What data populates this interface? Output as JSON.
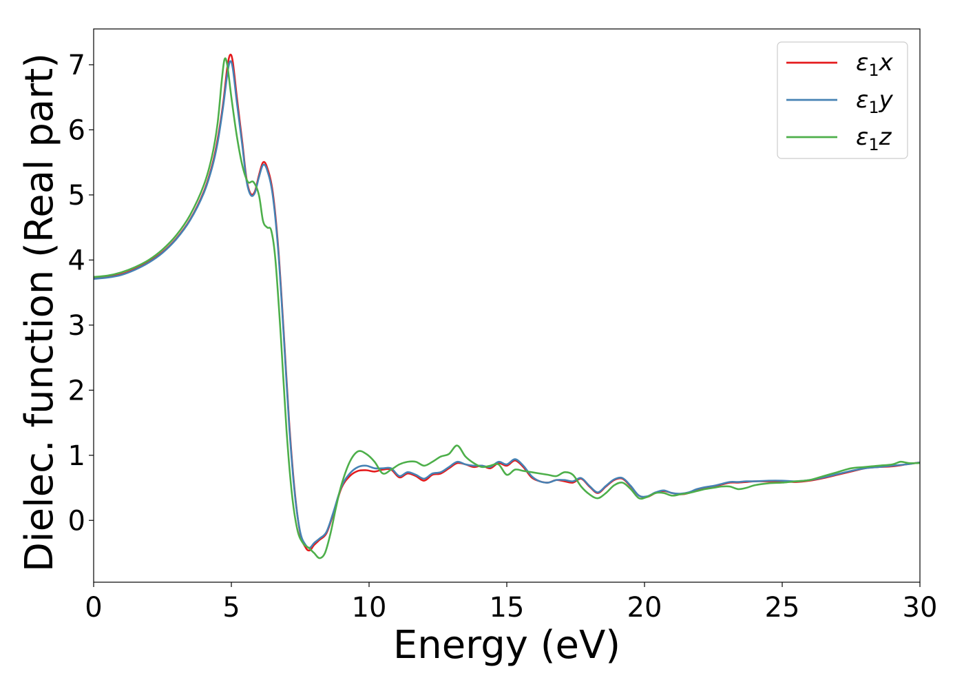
{
  "chart_data": {
    "type": "line",
    "title": "",
    "xlabel": "Energy (eV)",
    "ylabel": "Dielec. function (Real part)",
    "xlim": [
      0,
      30
    ],
    "ylim": [
      -0.95,
      7.55
    ],
    "xticks": [
      0,
      5,
      10,
      15,
      20,
      25,
      30
    ],
    "yticks": [
      0,
      1,
      2,
      3,
      4,
      5,
      6,
      7
    ],
    "grid": false,
    "legend_position": "top-right",
    "series": [
      {
        "name": "ε1x",
        "legend_main": "ε",
        "legend_sub": "1",
        "legend_tail": "x",
        "color": "#e41a1c",
        "points": [
          [
            0,
            3.72
          ],
          [
            0.5,
            3.74
          ],
          [
            1.0,
            3.78
          ],
          [
            1.5,
            3.86
          ],
          [
            2.0,
            3.97
          ],
          [
            2.5,
            4.12
          ],
          [
            3.0,
            4.33
          ],
          [
            3.5,
            4.62
          ],
          [
            4.0,
            5.05
          ],
          [
            4.3,
            5.45
          ],
          [
            4.5,
            5.85
          ],
          [
            4.7,
            6.4
          ],
          [
            4.85,
            6.95
          ],
          [
            4.95,
            7.15
          ],
          [
            5.05,
            7.05
          ],
          [
            5.2,
            6.5
          ],
          [
            5.4,
            5.8
          ],
          [
            5.55,
            5.25
          ],
          [
            5.7,
            5.02
          ],
          [
            5.85,
            5.05
          ],
          [
            6.0,
            5.3
          ],
          [
            6.15,
            5.5
          ],
          [
            6.3,
            5.42
          ],
          [
            6.5,
            5.05
          ],
          [
            6.7,
            4.2
          ],
          [
            6.9,
            2.9
          ],
          [
            7.1,
            1.5
          ],
          [
            7.3,
            0.45
          ],
          [
            7.5,
            -0.2
          ],
          [
            7.7,
            -0.42
          ],
          [
            7.85,
            -0.46
          ],
          [
            8.0,
            -0.38
          ],
          [
            8.2,
            -0.3
          ],
          [
            8.45,
            -0.2
          ],
          [
            8.7,
            0.1
          ],
          [
            9.0,
            0.5
          ],
          [
            9.3,
            0.68
          ],
          [
            9.6,
            0.76
          ],
          [
            9.9,
            0.77
          ],
          [
            10.2,
            0.75
          ],
          [
            10.5,
            0.78
          ],
          [
            10.8,
            0.78
          ],
          [
            11.1,
            0.66
          ],
          [
            11.4,
            0.72
          ],
          [
            11.7,
            0.68
          ],
          [
            12.0,
            0.61
          ],
          [
            12.3,
            0.7
          ],
          [
            12.6,
            0.72
          ],
          [
            12.9,
            0.8
          ],
          [
            13.2,
            0.88
          ],
          [
            13.5,
            0.86
          ],
          [
            13.8,
            0.82
          ],
          [
            14.1,
            0.84
          ],
          [
            14.4,
            0.8
          ],
          [
            14.7,
            0.88
          ],
          [
            15.0,
            0.84
          ],
          [
            15.3,
            0.92
          ],
          [
            15.6,
            0.82
          ],
          [
            15.9,
            0.66
          ],
          [
            16.2,
            0.6
          ],
          [
            16.5,
            0.58
          ],
          [
            16.8,
            0.62
          ],
          [
            17.1,
            0.6
          ],
          [
            17.4,
            0.58
          ],
          [
            17.7,
            0.64
          ],
          [
            18.0,
            0.52
          ],
          [
            18.3,
            0.42
          ],
          [
            18.6,
            0.52
          ],
          [
            18.9,
            0.62
          ],
          [
            19.2,
            0.64
          ],
          [
            19.5,
            0.52
          ],
          [
            19.8,
            0.38
          ],
          [
            20.1,
            0.36
          ],
          [
            20.4,
            0.42
          ],
          [
            20.7,
            0.45
          ],
          [
            21.0,
            0.42
          ],
          [
            21.3,
            0.4
          ],
          [
            21.6,
            0.42
          ],
          [
            21.9,
            0.47
          ],
          [
            22.2,
            0.5
          ],
          [
            22.5,
            0.52
          ],
          [
            22.8,
            0.55
          ],
          [
            23.1,
            0.58
          ],
          [
            23.4,
            0.58
          ],
          [
            23.7,
            0.59
          ],
          [
            24.0,
            0.6
          ],
          [
            24.5,
            0.6
          ],
          [
            25.0,
            0.6
          ],
          [
            25.5,
            0.59
          ],
          [
            26.0,
            0.61
          ],
          [
            26.5,
            0.65
          ],
          [
            27.0,
            0.7
          ],
          [
            27.5,
            0.75
          ],
          [
            28.0,
            0.8
          ],
          [
            28.5,
            0.82
          ],
          [
            29.0,
            0.83
          ],
          [
            29.5,
            0.86
          ],
          [
            30.0,
            0.89
          ]
        ]
      },
      {
        "name": "ε1y",
        "legend_main": "ε",
        "legend_sub": "1",
        "legend_tail": "y",
        "color": "#4682b4",
        "points": [
          [
            0,
            3.71
          ],
          [
            0.5,
            3.73
          ],
          [
            1.0,
            3.77
          ],
          [
            1.5,
            3.85
          ],
          [
            2.0,
            3.96
          ],
          [
            2.5,
            4.11
          ],
          [
            3.0,
            4.32
          ],
          [
            3.5,
            4.61
          ],
          [
            4.0,
            5.03
          ],
          [
            4.3,
            5.42
          ],
          [
            4.5,
            5.8
          ],
          [
            4.7,
            6.35
          ],
          [
            4.85,
            6.85
          ],
          [
            4.95,
            7.05
          ],
          [
            5.05,
            6.95
          ],
          [
            5.2,
            6.42
          ],
          [
            5.4,
            5.75
          ],
          [
            5.55,
            5.22
          ],
          [
            5.7,
            5.0
          ],
          [
            5.85,
            5.03
          ],
          [
            6.0,
            5.27
          ],
          [
            6.15,
            5.46
          ],
          [
            6.3,
            5.38
          ],
          [
            6.5,
            5.0
          ],
          [
            6.7,
            4.15
          ],
          [
            6.9,
            2.85
          ],
          [
            7.1,
            1.45
          ],
          [
            7.3,
            0.42
          ],
          [
            7.5,
            -0.18
          ],
          [
            7.7,
            -0.38
          ],
          [
            7.85,
            -0.42
          ],
          [
            8.0,
            -0.35
          ],
          [
            8.2,
            -0.28
          ],
          [
            8.45,
            -0.18
          ],
          [
            8.7,
            0.12
          ],
          [
            9.0,
            0.52
          ],
          [
            9.3,
            0.72
          ],
          [
            9.6,
            0.82
          ],
          [
            9.9,
            0.84
          ],
          [
            10.2,
            0.8
          ],
          [
            10.5,
            0.8
          ],
          [
            10.8,
            0.8
          ],
          [
            11.1,
            0.68
          ],
          [
            11.4,
            0.74
          ],
          [
            11.7,
            0.7
          ],
          [
            12.0,
            0.64
          ],
          [
            12.3,
            0.72
          ],
          [
            12.6,
            0.74
          ],
          [
            12.9,
            0.82
          ],
          [
            13.2,
            0.9
          ],
          [
            13.5,
            0.86
          ],
          [
            13.8,
            0.84
          ],
          [
            14.1,
            0.84
          ],
          [
            14.4,
            0.82
          ],
          [
            14.7,
            0.9
          ],
          [
            15.0,
            0.86
          ],
          [
            15.3,
            0.94
          ],
          [
            15.6,
            0.84
          ],
          [
            15.9,
            0.68
          ],
          [
            16.2,
            0.6
          ],
          [
            16.5,
            0.58
          ],
          [
            16.8,
            0.62
          ],
          [
            17.1,
            0.62
          ],
          [
            17.4,
            0.6
          ],
          [
            17.7,
            0.65
          ],
          [
            18.0,
            0.53
          ],
          [
            18.3,
            0.43
          ],
          [
            18.6,
            0.53
          ],
          [
            18.9,
            0.63
          ],
          [
            19.2,
            0.65
          ],
          [
            19.5,
            0.53
          ],
          [
            19.8,
            0.38
          ],
          [
            20.1,
            0.37
          ],
          [
            20.4,
            0.43
          ],
          [
            20.7,
            0.46
          ],
          [
            21.0,
            0.42
          ],
          [
            21.3,
            0.41
          ],
          [
            21.6,
            0.43
          ],
          [
            21.9,
            0.48
          ],
          [
            22.2,
            0.51
          ],
          [
            22.5,
            0.53
          ],
          [
            22.8,
            0.56
          ],
          [
            23.1,
            0.59
          ],
          [
            23.4,
            0.59
          ],
          [
            23.7,
            0.6
          ],
          [
            24.0,
            0.6
          ],
          [
            24.5,
            0.61
          ],
          [
            25.0,
            0.61
          ],
          [
            25.5,
            0.6
          ],
          [
            26.0,
            0.62
          ],
          [
            26.5,
            0.66
          ],
          [
            27.0,
            0.71
          ],
          [
            27.5,
            0.76
          ],
          [
            28.0,
            0.8
          ],
          [
            28.5,
            0.82
          ],
          [
            29.0,
            0.84
          ],
          [
            29.5,
            0.86
          ],
          [
            30.0,
            0.89
          ]
        ]
      },
      {
        "name": "ε1z",
        "legend_main": "ε",
        "legend_sub": "1",
        "legend_tail": "z",
        "color": "#4daf4a",
        "points": [
          [
            0,
            3.74
          ],
          [
            0.5,
            3.76
          ],
          [
            1.0,
            3.81
          ],
          [
            1.5,
            3.89
          ],
          [
            2.0,
            4.0
          ],
          [
            2.5,
            4.16
          ],
          [
            3.0,
            4.38
          ],
          [
            3.5,
            4.69
          ],
          [
            4.0,
            5.15
          ],
          [
            4.3,
            5.6
          ],
          [
            4.5,
            6.1
          ],
          [
            4.65,
            6.75
          ],
          [
            4.75,
            7.08
          ],
          [
            4.85,
            7.0
          ],
          [
            5.0,
            6.5
          ],
          [
            5.2,
            5.9
          ],
          [
            5.4,
            5.45
          ],
          [
            5.6,
            5.2
          ],
          [
            5.8,
            5.2
          ],
          [
            6.0,
            5.0
          ],
          [
            6.15,
            4.6
          ],
          [
            6.3,
            4.5
          ],
          [
            6.45,
            4.45
          ],
          [
            6.6,
            4.0
          ],
          [
            6.8,
            2.8
          ],
          [
            7.0,
            1.4
          ],
          [
            7.2,
            0.4
          ],
          [
            7.4,
            -0.15
          ],
          [
            7.6,
            -0.35
          ],
          [
            7.8,
            -0.42
          ],
          [
            8.0,
            -0.5
          ],
          [
            8.2,
            -0.58
          ],
          [
            8.4,
            -0.5
          ],
          [
            8.6,
            -0.2
          ],
          [
            8.8,
            0.2
          ],
          [
            9.0,
            0.55
          ],
          [
            9.3,
            0.9
          ],
          [
            9.6,
            1.06
          ],
          [
            9.9,
            1.02
          ],
          [
            10.2,
            0.9
          ],
          [
            10.5,
            0.72
          ],
          [
            10.8,
            0.78
          ],
          [
            11.1,
            0.86
          ],
          [
            11.4,
            0.9
          ],
          [
            11.7,
            0.9
          ],
          [
            12.0,
            0.84
          ],
          [
            12.3,
            0.9
          ],
          [
            12.6,
            0.98
          ],
          [
            12.9,
            1.02
          ],
          [
            13.2,
            1.15
          ],
          [
            13.5,
            0.98
          ],
          [
            13.8,
            0.88
          ],
          [
            14.1,
            0.82
          ],
          [
            14.4,
            0.84
          ],
          [
            14.7,
            0.86
          ],
          [
            15.0,
            0.7
          ],
          [
            15.3,
            0.78
          ],
          [
            15.6,
            0.76
          ],
          [
            15.9,
            0.74
          ],
          [
            16.2,
            0.72
          ],
          [
            16.5,
            0.7
          ],
          [
            16.8,
            0.68
          ],
          [
            17.1,
            0.74
          ],
          [
            17.4,
            0.7
          ],
          [
            17.7,
            0.52
          ],
          [
            18.0,
            0.4
          ],
          [
            18.3,
            0.34
          ],
          [
            18.6,
            0.42
          ],
          [
            18.9,
            0.54
          ],
          [
            19.2,
            0.58
          ],
          [
            19.5,
            0.48
          ],
          [
            19.8,
            0.34
          ],
          [
            20.1,
            0.36
          ],
          [
            20.4,
            0.42
          ],
          [
            20.7,
            0.42
          ],
          [
            21.0,
            0.38
          ],
          [
            21.3,
            0.4
          ],
          [
            21.6,
            0.42
          ],
          [
            21.9,
            0.45
          ],
          [
            22.2,
            0.48
          ],
          [
            22.5,
            0.5
          ],
          [
            22.8,
            0.52
          ],
          [
            23.1,
            0.52
          ],
          [
            23.4,
            0.48
          ],
          [
            23.7,
            0.5
          ],
          [
            24.0,
            0.54
          ],
          [
            24.5,
            0.57
          ],
          [
            25.0,
            0.58
          ],
          [
            25.5,
            0.6
          ],
          [
            26.0,
            0.62
          ],
          [
            26.5,
            0.68
          ],
          [
            27.0,
            0.74
          ],
          [
            27.5,
            0.8
          ],
          [
            28.0,
            0.82
          ],
          [
            28.5,
            0.84
          ],
          [
            29.0,
            0.86
          ],
          [
            29.3,
            0.9
          ],
          [
            29.6,
            0.88
          ],
          [
            30.0,
            0.88
          ]
        ]
      }
    ]
  }
}
